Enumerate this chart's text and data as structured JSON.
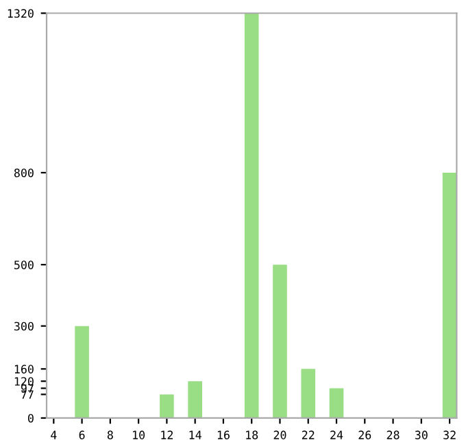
{
  "chart_data": {
    "type": "bar",
    "categories": [
      "4",
      null,
      "6",
      null,
      "8",
      null,
      "10",
      null,
      "12",
      null,
      "14",
      null,
      "16",
      null,
      "18",
      null,
      "20",
      null,
      "22",
      null,
      "24",
      null,
      "26",
      null,
      "28",
      null,
      "30",
      null,
      "32"
    ],
    "values": [
      0,
      0,
      300,
      0,
      0,
      0,
      0,
      0,
      77,
      0,
      120,
      0,
      0,
      0,
      1320,
      0,
      500,
      0,
      160,
      0,
      97,
      0,
      0,
      0,
      0,
      0,
      0,
      0,
      800
    ],
    "color": "#99dd85",
    "ylim": [
      0,
      1320
    ],
    "yticks": [
      0,
      77,
      97,
      120,
      160,
      300,
      500,
      800,
      1320
    ],
    "grid": false
  }
}
